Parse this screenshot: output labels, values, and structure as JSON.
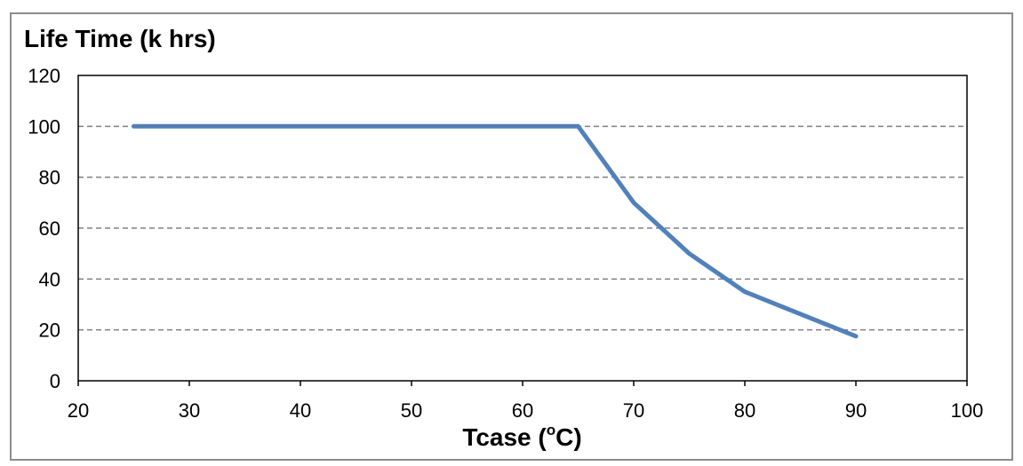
{
  "chart_data": {
    "type": "line",
    "ylabel": "Life Time (k hrs)",
    "xlabel_pre": "Tcase (",
    "xlabel_sup": "o",
    "xlabel_post": "C)",
    "xlim": [
      20,
      100
    ],
    "ylim": [
      0,
      120
    ],
    "xticks": [
      20,
      30,
      40,
      50,
      60,
      70,
      80,
      90,
      100
    ],
    "yticks": [
      0,
      20,
      40,
      60,
      80,
      100,
      120
    ],
    "grid": "horizontal-dashed",
    "series": [
      {
        "x": [
          25,
          65,
          70,
          75,
          80,
          90
        ],
        "y": [
          100,
          100,
          70,
          50,
          35,
          17.5
        ],
        "color": "#4f81bd"
      }
    ]
  }
}
